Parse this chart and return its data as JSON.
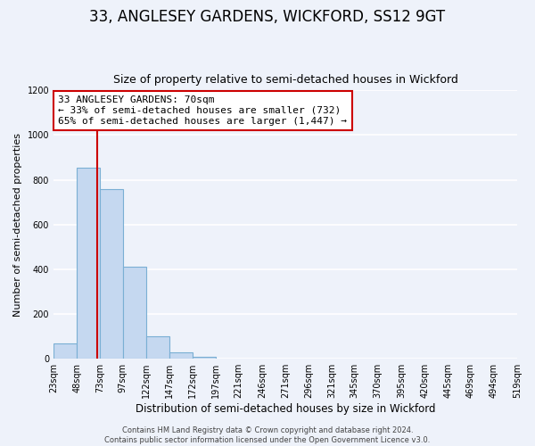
{
  "title_line1": "33, ANGLESEY GARDENS, WICKFORD, SS12 9GT",
  "title_line2": "Size of property relative to semi-detached houses in Wickford",
  "xlabel": "Distribution of semi-detached houses by size in Wickford",
  "ylabel": "Number of semi-detached properties",
  "bin_edges": [
    23,
    48,
    73,
    97,
    122,
    147,
    172,
    197,
    221,
    246,
    271,
    296,
    321,
    345,
    370,
    395,
    420,
    445,
    469,
    494,
    519
  ],
  "bin_counts": [
    70,
    855,
    760,
    410,
    100,
    30,
    8,
    0,
    0,
    0,
    0,
    0,
    0,
    0,
    0,
    0,
    0,
    0,
    0,
    0
  ],
  "bar_color": "#c5d8f0",
  "bar_edge_color": "#7aafd4",
  "vline_color": "#cc0000",
  "vline_x": 70,
  "annotation_line1": "33 ANGLESEY GARDENS: 70sqm",
  "annotation_line2": "← 33% of semi-detached houses are smaller (732)",
  "annotation_line3": "65% of semi-detached houses are larger (1,447) →",
  "annotation_box_facecolor": "#ffffff",
  "annotation_box_edgecolor": "#cc0000",
  "ylim": [
    0,
    1200
  ],
  "yticks": [
    0,
    200,
    400,
    600,
    800,
    1000,
    1200
  ],
  "tick_labels": [
    "23sqm",
    "48sqm",
    "73sqm",
    "97sqm",
    "122sqm",
    "147sqm",
    "172sqm",
    "197sqm",
    "221sqm",
    "246sqm",
    "271sqm",
    "296sqm",
    "321sqm",
    "345sqm",
    "370sqm",
    "395sqm",
    "420sqm",
    "445sqm",
    "469sqm",
    "494sqm",
    "519sqm"
  ],
  "footer_text": "Contains HM Land Registry data © Crown copyright and database right 2024.\nContains public sector information licensed under the Open Government Licence v3.0.",
  "background_color": "#eef2fa",
  "grid_color": "#ffffff",
  "title1_fontsize": 12,
  "title2_fontsize": 9,
  "ylabel_fontsize": 8,
  "xlabel_fontsize": 8.5,
  "tick_fontsize": 7,
  "annotation_fontsize": 8,
  "footer_fontsize": 6
}
